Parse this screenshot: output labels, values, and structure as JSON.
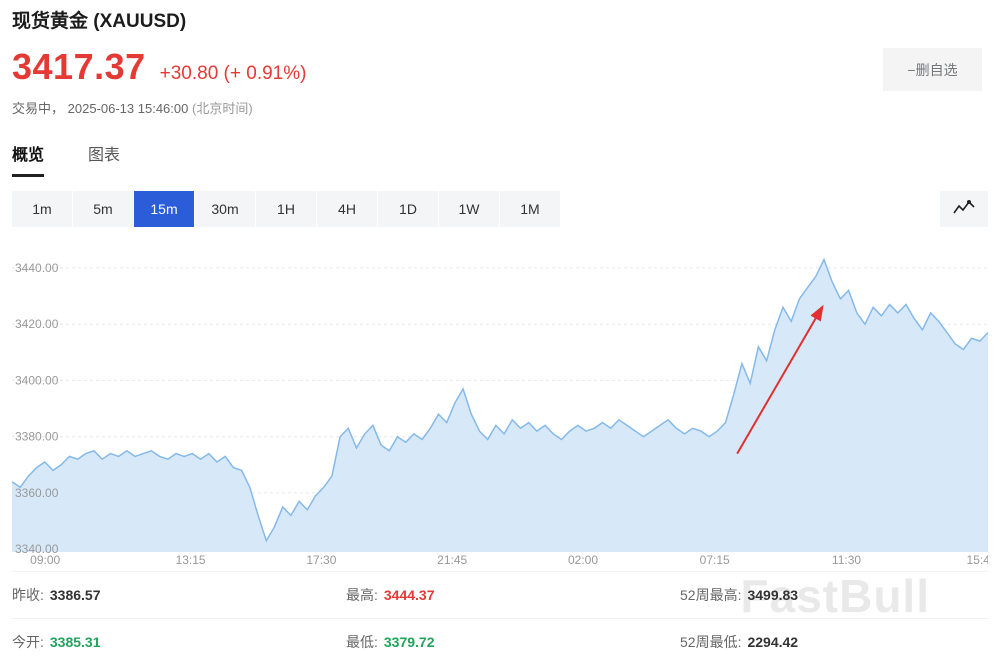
{
  "header": {
    "title": "现货黄金 (XAUUSD)",
    "price": "3417.37",
    "change": "+30.80 (+ 0.91%)",
    "status": "交易中，",
    "timestamp": "2025-06-13 15:46:00",
    "timezone": "(北京时间)",
    "watchlist_button": "−删自选",
    "price_color": "#e53935"
  },
  "tabs": [
    {
      "label": "概览",
      "active": true
    },
    {
      "label": "图表",
      "active": false
    }
  ],
  "toolbar": {
    "intervals": [
      {
        "label": "1m",
        "active": false
      },
      {
        "label": "5m",
        "active": false
      },
      {
        "label": "15m",
        "active": true
      },
      {
        "label": "30m",
        "active": false
      },
      {
        "label": "1H",
        "active": false
      },
      {
        "label": "4H",
        "active": false
      },
      {
        "label": "1D",
        "active": false
      },
      {
        "label": "1W",
        "active": false
      },
      {
        "label": "1M",
        "active": false
      }
    ],
    "selected_color": "#2b5dd8",
    "chart_type_icon": "line-chart-icon"
  },
  "chart_data": {
    "type": "area",
    "symbol": "XAUUSD",
    "interval": "15m",
    "ylim": [
      3339,
      3451
    ],
    "grid": true,
    "line_color": "#85b9e9",
    "fill_color": "#d7e9f9",
    "y_ticks": [
      {
        "label": "3440.00",
        "value": 3440
      },
      {
        "label": "3420.00",
        "value": 3420
      },
      {
        "label": "3400.00",
        "value": 3400
      },
      {
        "label": "3380.00",
        "value": 3380
      },
      {
        "label": "3360.00",
        "value": 3360
      },
      {
        "label": "3340.00",
        "value": 3340
      }
    ],
    "x_ticks": [
      {
        "label": "09:00",
        "pos": 0.034
      },
      {
        "label": "13:15",
        "pos": 0.183
      },
      {
        "label": "17:30",
        "pos": 0.317
      },
      {
        "label": "21:45",
        "pos": 0.451
      },
      {
        "label": "02:00",
        "pos": 0.585
      },
      {
        "label": "07:15",
        "pos": 0.72
      },
      {
        "label": "11:30",
        "pos": 0.855
      },
      {
        "label": "15:4",
        "pos": 0.99
      }
    ],
    "values": [
      3364,
      3362,
      3366,
      3369,
      3371,
      3368,
      3370,
      3373,
      3372,
      3374,
      3375,
      3372,
      3374,
      3373,
      3375,
      3373,
      3374,
      3375,
      3373,
      3372,
      3374,
      3373,
      3374,
      3372,
      3374,
      3371,
      3373,
      3369,
      3368,
      3362,
      3352,
      3343,
      3348,
      3355,
      3352,
      3357,
      3354,
      3359,
      3362,
      3366,
      3380,
      3383,
      3376,
      3381,
      3384,
      3377,
      3375,
      3380,
      3378,
      3381,
      3379,
      3383,
      3388,
      3385,
      3392,
      3397,
      3388,
      3382,
      3379,
      3384,
      3381,
      3386,
      3383,
      3385,
      3382,
      3384,
      3381,
      3379,
      3382,
      3384,
      3382,
      3383,
      3385,
      3383,
      3386,
      3384,
      3382,
      3380,
      3382,
      3384,
      3386,
      3383,
      3381,
      3383,
      3382,
      3380,
      3382,
      3385,
      3395,
      3406,
      3399,
      3412,
      3407,
      3418,
      3426,
      3421,
      3429,
      3433,
      3437,
      3443,
      3435,
      3429,
      3432,
      3424,
      3420,
      3426,
      3423,
      3427,
      3424,
      3427,
      3422,
      3418,
      3424,
      3421,
      3417,
      3413,
      3411,
      3415,
      3414,
      3417
    ],
    "annotation": {
      "type": "arrow",
      "color": "#e03030",
      "from": [
        0.743,
        3374
      ],
      "to": [
        0.83,
        3426
      ]
    }
  },
  "stats": {
    "rows": [
      [
        {
          "label": "昨收:",
          "value": "3386.57",
          "color": "dark"
        },
        {
          "label": "最高:",
          "value": "3444.37",
          "color": "red"
        },
        {
          "label": "52周最高:",
          "value": "3499.83",
          "color": "dark"
        }
      ],
      [
        {
          "label": "今开:",
          "value": "3385.31",
          "color": "green"
        },
        {
          "label": "最低:",
          "value": "3379.72",
          "color": "green"
        },
        {
          "label": "52周最低:",
          "value": "2294.42",
          "color": "dark"
        }
      ]
    ]
  },
  "watermark": "FastBull"
}
